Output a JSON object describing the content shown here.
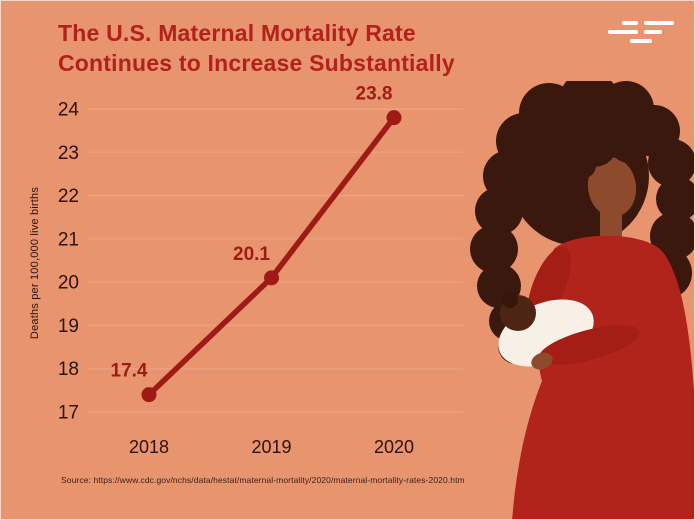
{
  "page": {
    "background": "#E8946F"
  },
  "header": {
    "title": "The U.S. Maternal Mortality Rate Continues to Increase Substantially"
  },
  "chart_data": {
    "type": "line",
    "title": "The U.S. Maternal Mortality Rate Continues to Increase Substantially",
    "categories": [
      "2018",
      "2019",
      "2020"
    ],
    "values": [
      17.4,
      20.1,
      23.8
    ],
    "data_labels": [
      "17.4",
      "20.1",
      "23.8"
    ],
    "xlabel": "",
    "ylabel": "Deaths per 100,000 live births",
    "ylim": [
      17,
      24
    ],
    "yticks": [
      24,
      23,
      22,
      21,
      20,
      19,
      18,
      17
    ],
    "grid": true,
    "legend": "none",
    "marker": "circle"
  },
  "source": {
    "label": "Source: https://www.cdc.gov/nchs/data/hestat/maternal-mortality/2020/maternal-mortality-rates-2020.htm"
  },
  "colors": {
    "background": "#E8946F",
    "title_red": "#B2211A",
    "line_red": "#9E1B15",
    "axis_text": "#2D120C",
    "gridline": "#EDA284",
    "dress_red": "#B1241B",
    "hair_brown": "#3A180E",
    "skin_brown": "#8E4A2C",
    "baby_skin": "#4E2415",
    "blanket_white": "#F6F0E6",
    "logo_white": "#FFFFFF"
  }
}
